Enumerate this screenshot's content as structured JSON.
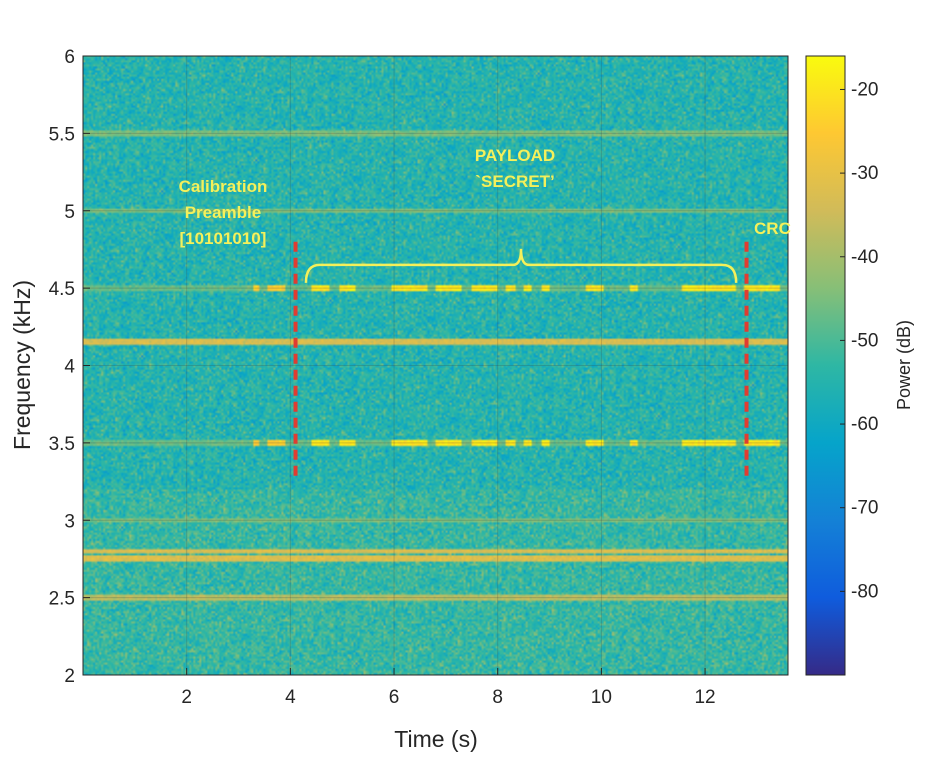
{
  "chart_data": {
    "type": "heatmap",
    "title": "",
    "xlabel": "Time (s)",
    "ylabel": "Frequency (kHz)",
    "colorbar_label": "Power (dB)",
    "xlim": [
      0,
      13.6
    ],
    "ylim": [
      2,
      6
    ],
    "xticks": [
      2,
      4,
      6,
      8,
      10,
      12
    ],
    "yticks": [
      2,
      2.5,
      3,
      3.5,
      4,
      4.5,
      5,
      5.5,
      6
    ],
    "colorbar_range": [
      -90,
      -16
    ],
    "colorbar_ticks": [
      -20,
      -30,
      -40,
      -50,
      -60,
      -70,
      -80
    ],
    "colormap": "parula",
    "grid": true,
    "background_noise_db": -55,
    "steady_tones": [
      {
        "freq_khz": 5.5,
        "power_db": -45
      },
      {
        "freq_khz": 5.0,
        "power_db": -45
      },
      {
        "freq_khz": 4.5,
        "power_db": -47
      },
      {
        "freq_khz": 4.15,
        "power_db": -33
      },
      {
        "freq_khz": 3.5,
        "power_db": -47
      },
      {
        "freq_khz": 3.0,
        "power_db": -45
      },
      {
        "freq_khz": 2.8,
        "power_db": -33
      },
      {
        "freq_khz": 2.75,
        "power_db": -32
      },
      {
        "freq_khz": 2.5,
        "power_db": -38
      }
    ],
    "bursts": [
      {
        "freq_khz": 4.5,
        "t_start": 3.3,
        "t_end": 4.1,
        "power_db": -25
      },
      {
        "freq_khz": 4.5,
        "t_start": 4.35,
        "t_end": 13.6,
        "power_db": -20
      },
      {
        "freq_khz": 3.5,
        "t_start": 3.3,
        "t_end": 4.1,
        "power_db": -25
      },
      {
        "freq_khz": 3.5,
        "t_start": 4.35,
        "t_end": 13.6,
        "power_db": -20
      }
    ],
    "markers": [
      {
        "type": "dashed-line",
        "x": 4.1,
        "y_range": [
          3.28,
          4.8
        ],
        "color": "#e03c31"
      },
      {
        "type": "dashed-line",
        "x": 12.8,
        "y_range": [
          3.28,
          4.8
        ],
        "color": "#e03c31"
      }
    ],
    "brace": {
      "x_range": [
        4.3,
        12.6
      ],
      "y": 4.65,
      "color": "#f5f05a"
    },
    "annotations": [
      {
        "lines": [
          "Calibration",
          "Preamble",
          "[10101010]"
        ],
        "color": "#f5f05a"
      },
      {
        "lines": [
          "PAYLOAD",
          "`SECRET’"
        ],
        "color": "#f5f05a"
      },
      {
        "lines": [
          "CRC"
        ],
        "color": "#f5f05a"
      }
    ]
  }
}
